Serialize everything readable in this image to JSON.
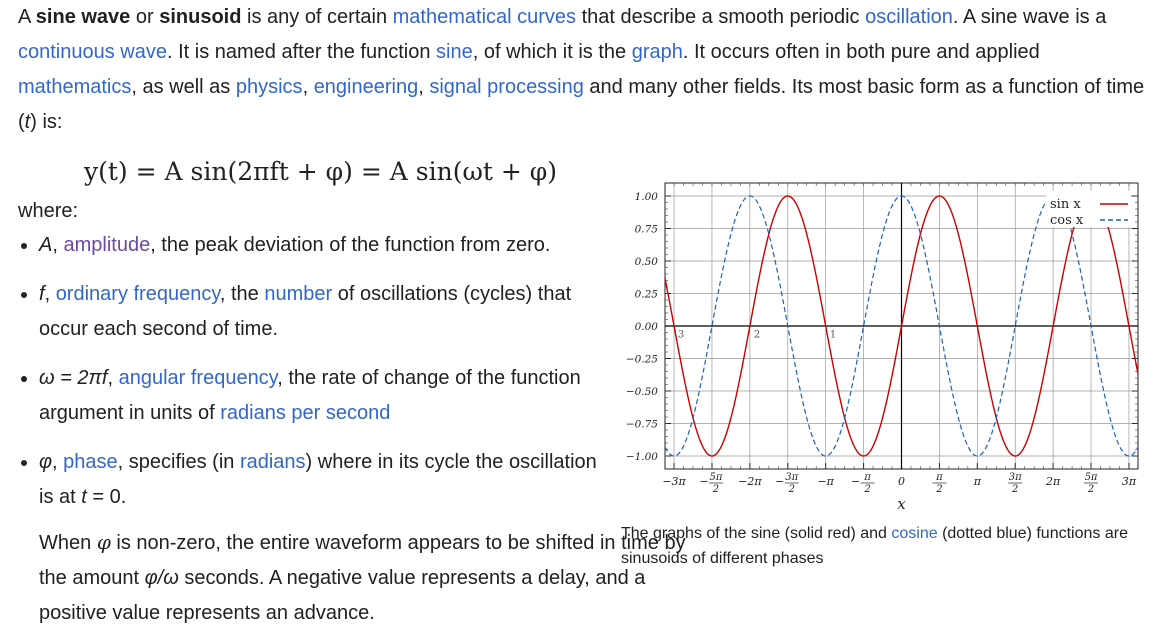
{
  "intro": {
    "t1": "A ",
    "b1": "sine wave",
    "t2": " or ",
    "b2": "sinusoid",
    "t3": " is any of certain ",
    "l1": "mathematical curves",
    "t4": " that describe a smooth periodic ",
    "l2": "oscillation",
    "t5": ". A sine wave is a ",
    "l3": "continuous wave",
    "t6": ". It is named after the function ",
    "l4": "sine",
    "t7": ", of which it is the ",
    "l5": "graph",
    "t8": ". It occurs often in both pure and applied ",
    "l6": "mathematics",
    "t9": ", as well as ",
    "l7": "physics",
    "t10": ", ",
    "l8": "engineering",
    "t11": ", ",
    "l9": "signal processing",
    "t12": " and many other fields. Its most basic form as a function of time (",
    "t13": "t",
    "t14": ") is:"
  },
  "formula": "y(t) = A sin(2πft + φ) = A sin(ωt + φ)",
  "where_label": "where:",
  "bullets": [
    {
      "sym": "A",
      "sep": ", ",
      "link": "amplitude",
      "rest": ", the peak deviation of the function from zero."
    },
    {
      "sym": "f",
      "sep": ", ",
      "link": "ordinary frequency",
      "mid": ", the ",
      "link2": "number",
      "rest": " of oscillations (cycles) that occur each second of time."
    },
    {
      "sym": "ω = 2πf",
      "sep": ", ",
      "link": "angular frequency",
      "mid": ", the rate of change of the function argument in units of ",
      "link2": "radians per second"
    },
    {
      "sym": "φ",
      "sep": ", ",
      "link": "phase",
      "mid": ", specifies (in ",
      "link2": "radians",
      "rest": ") where in its cycle the oscillation is at ",
      "tsym": "t",
      "rest2": " = 0."
    }
  ],
  "tail": {
    "a": "When ",
    "phi": "φ",
    "b": " is non-zero, the entire waveform appears to be shifted in time by the amount ",
    "frac": "φ/ω",
    "c": " seconds. A negative value represents a delay, and a positive value represents an advance."
  },
  "caption": {
    "a": "The graphs of the sine (solid red) and ",
    "link": "cosine",
    "b": " (dotted blue) functions are sinusoids of different phases"
  },
  "chart_data": {
    "type": "line",
    "xlabel": "x",
    "ylabel": "",
    "xlim": [
      -9.8,
      9.8
    ],
    "ylim": [
      -1.1,
      1.1
    ],
    "grid": true,
    "legend_position": "top-right",
    "yticks": [
      1.0,
      0.75,
      0.5,
      0.25,
      0.0,
      -0.25,
      -0.5,
      -0.75,
      -1.0
    ],
    "ytick_labels": [
      "1.00",
      "0.75",
      "0.50",
      "0.25",
      "0.00",
      "−0.25",
      "−0.50",
      "−0.75",
      "−1.00"
    ],
    "xticks": [
      -9.4248,
      -7.854,
      -6.2832,
      -4.7124,
      -3.1416,
      -1.5708,
      0,
      1.5708,
      3.1416,
      4.7124,
      6.2832,
      7.854,
      9.4248
    ],
    "xtick_labels": [
      {
        "num": "−3π"
      },
      {
        "num": "5π",
        "den": "2",
        "neg": true
      },
      {
        "num": "−2π"
      },
      {
        "num": "3π",
        "den": "2",
        "neg": true
      },
      {
        "num": "−π"
      },
      {
        "num": "π",
        "den": "2",
        "neg": true
      },
      {
        "num": "0"
      },
      {
        "num": "π",
        "den": "2"
      },
      {
        "num": "π"
      },
      {
        "num": "3π",
        "den": "2"
      },
      {
        "num": "2π"
      },
      {
        "num": "5π",
        "den": "2"
      },
      {
        "num": "3π"
      }
    ],
    "inner_labels": [
      "3",
      "2",
      "1"
    ],
    "series": [
      {
        "name": "sin x",
        "function": "sin",
        "color": "#cc0000",
        "style": "solid"
      },
      {
        "name": "cos x",
        "function": "cos",
        "color": "#1f5fbf",
        "style": "dashed"
      }
    ]
  }
}
